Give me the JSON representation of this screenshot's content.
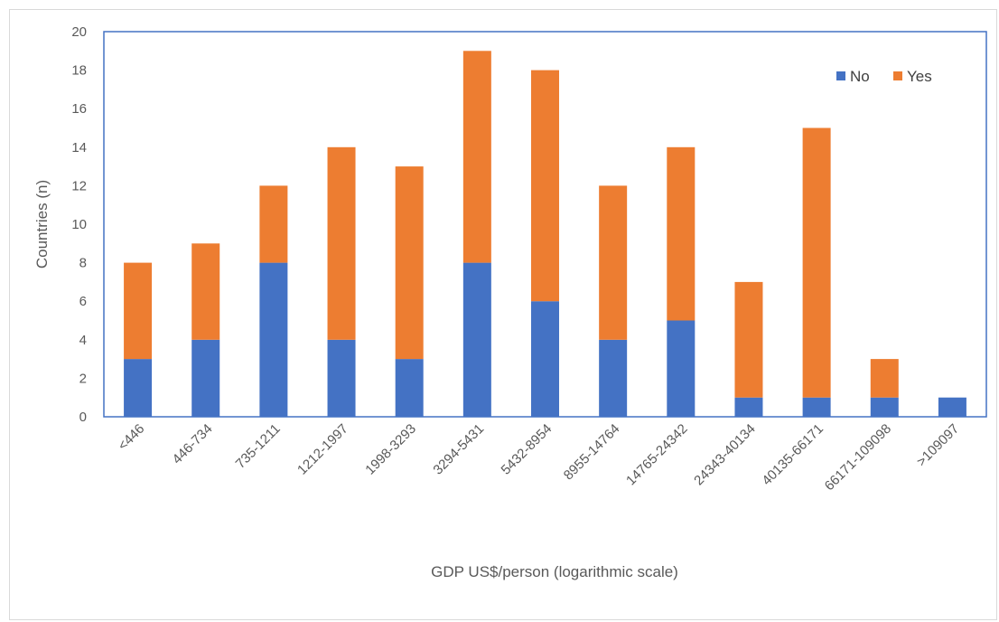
{
  "chart_data": {
    "type": "bar",
    "stacked": true,
    "title": "",
    "xlabel": "GDP US$/person (logarithmic scale)",
    "ylabel": "Countries (n)",
    "ylim": [
      0,
      20
    ],
    "yticks": [
      "0",
      "2",
      "4",
      "6",
      "8",
      "10",
      "12",
      "14",
      "16",
      "18",
      "20"
    ],
    "grid": false,
    "legend_position": "top-right",
    "categories": [
      "<446",
      "446-734",
      "735-1211",
      "1212-1997",
      "1998-3293",
      "3294-5431",
      "5432-8954",
      "8955-14764",
      "14765-24342",
      "24343-40134",
      "40135-66171",
      "66171-109098",
      ">109097"
    ],
    "series": [
      {
        "name": "No",
        "color": "#4472c4",
        "values": [
          3,
          4,
          8,
          4,
          3,
          8,
          6,
          4,
          5,
          1,
          1,
          1,
          1
        ]
      },
      {
        "name": "Yes",
        "color": "#ed7d31",
        "values": [
          5,
          5,
          4,
          10,
          10,
          11,
          12,
          8,
          9,
          6,
          14,
          2,
          0
        ]
      }
    ],
    "plot_border_color": "#4472c4"
  }
}
